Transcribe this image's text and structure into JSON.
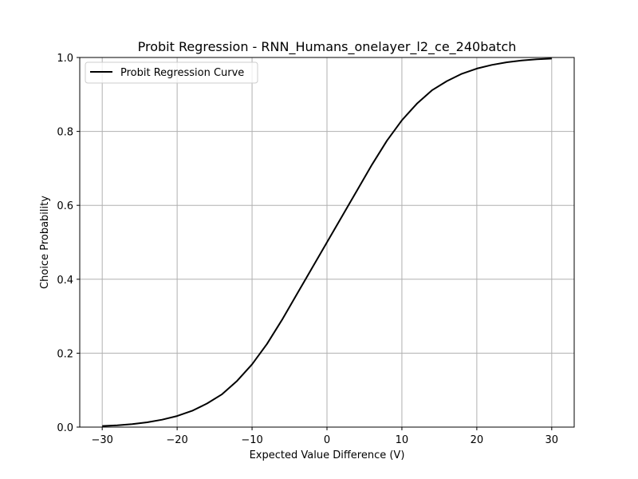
{
  "chart_data": {
    "type": "line",
    "title": "Probit Regression - RNN_Humans_onelayer_l2_ce_240batch",
    "xlabel": "Expected Value Difference (V)",
    "ylabel": "Choice Probability",
    "xlim": [
      -33,
      33
    ],
    "ylim": [
      0,
      1
    ],
    "xticks": [
      -30,
      -20,
      -10,
      0,
      10,
      20,
      30
    ],
    "xtick_labels": [
      "−30",
      "−20",
      "−10",
      "0",
      "10",
      "20",
      "30"
    ],
    "yticks": [
      0.0,
      0.2,
      0.4,
      0.6,
      0.8,
      1.0
    ],
    "ytick_labels": [
      "0.0",
      "0.2",
      "0.4",
      "0.6",
      "0.8",
      "1.0"
    ],
    "grid": true,
    "legend_position": "top-left",
    "series": [
      {
        "name": "Probit Regression Curve",
        "color": "#000000",
        "x": [
          -30,
          -28,
          -26,
          -24,
          -22,
          -20,
          -18,
          -16,
          -14,
          -12,
          -10,
          -8,
          -6,
          -4,
          -2,
          0,
          2,
          4,
          6,
          8,
          10,
          12,
          14,
          16,
          18,
          20,
          22,
          24,
          26,
          28,
          30
        ],
        "y": [
          0.003,
          0.005,
          0.008,
          0.013,
          0.02,
          0.03,
          0.044,
          0.064,
          0.089,
          0.125,
          0.17,
          0.225,
          0.29,
          0.36,
          0.43,
          0.5,
          0.57,
          0.64,
          0.71,
          0.775,
          0.83,
          0.875,
          0.911,
          0.936,
          0.956,
          0.97,
          0.98,
          0.987,
          0.992,
          0.995,
          0.997
        ]
      }
    ]
  }
}
